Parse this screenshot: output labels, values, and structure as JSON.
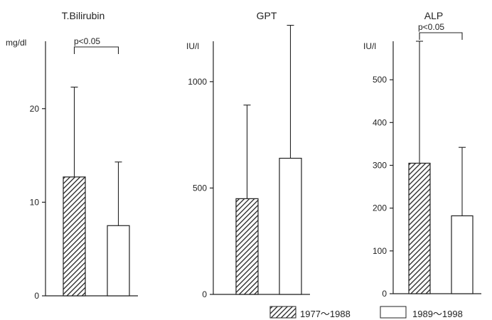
{
  "colors": {
    "ink": "#222222",
    "paper": "#ffffff"
  },
  "chart_data": [
    {
      "type": "bar",
      "title": "T.Bilirubin",
      "ylabel": "mg/dl",
      "ylim": [
        0,
        27.2
      ],
      "yticks": [
        0,
        10,
        20
      ],
      "ytick_labels": [
        "0",
        "10",
        "20"
      ],
      "series": [
        {
          "name": "1977~1988",
          "values": [
            12.7
          ],
          "error_upper": [
            22.3
          ],
          "pattern": "hatched"
        },
        {
          "name": "1989~1998",
          "values": [
            7.5
          ],
          "error_upper": [
            14.3
          ],
          "pattern": "open"
        }
      ],
      "annotation": {
        "text": "p<0.05",
        "between": [
          "1977~1988",
          "1989~1998"
        ]
      }
    },
    {
      "type": "bar",
      "title": "GPT",
      "ylabel": "IU/l",
      "ylim": [
        0,
        1190
      ],
      "yticks": [
        0,
        500,
        1000
      ],
      "ytick_labels": [
        "0",
        "500",
        "1000"
      ],
      "series": [
        {
          "name": "1977~1988",
          "values": [
            450
          ],
          "error_upper": [
            890
          ],
          "pattern": "hatched"
        },
        {
          "name": "1989~1998",
          "values": [
            640
          ],
          "error_upper": [
            1265
          ],
          "pattern": "open"
        }
      ]
    },
    {
      "type": "bar",
      "title": "ALP",
      "ylabel": "IU/l",
      "ylim": [
        0,
        590
      ],
      "yticks": [
        0,
        100,
        200,
        300,
        400,
        500
      ],
      "ytick_labels": [
        "0",
        "100",
        "200",
        "300",
        "400",
        "500"
      ],
      "series": [
        {
          "name": "1977~1988",
          "values": [
            305
          ],
          "error_upper": [
            590
          ],
          "pattern": "hatched"
        },
        {
          "name": "1989~1998",
          "values": [
            182
          ],
          "error_upper": [
            342
          ],
          "pattern": "open"
        }
      ],
      "annotation": {
        "text": "p<0.05",
        "between": [
          "1977~1988",
          "1989~1998"
        ]
      }
    }
  ],
  "legend": {
    "placement": "bottom-right",
    "items": [
      {
        "label": "1977～1988",
        "pattern": "hatched"
      },
      {
        "label": "1989～1998",
        "pattern": "open"
      }
    ]
  }
}
